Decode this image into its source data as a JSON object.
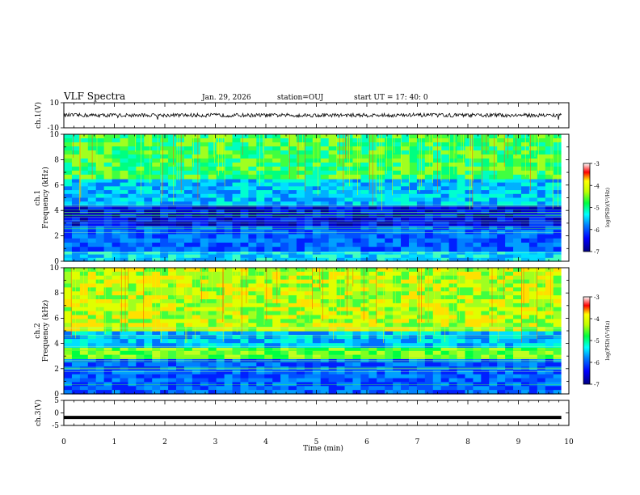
{
  "header": {
    "title": "VLF Spectra",
    "date": "Jan. 29, 2026",
    "station": "station=OUJ",
    "start": "start  UT =   17: 40: 0"
  },
  "chart_data": [
    {
      "type": "line",
      "panel": "ch1-waveform",
      "ylabel": "ch.1(V)",
      "ylim": [
        -10,
        10
      ],
      "yticks": [
        "10",
        "-10"
      ],
      "xlim": [
        0,
        10
      ],
      "level": 0
    },
    {
      "type": "heatmap",
      "panel": "ch1-spectrogram",
      "ylabel": [
        "ch.1",
        "Frequency  (kHz)"
      ],
      "ylim": [
        0,
        10
      ],
      "yticks": [
        "10",
        "8",
        "6",
        "4",
        "2",
        "0"
      ],
      "xlim": [
        0,
        10
      ],
      "data_end_min": 9.85,
      "colorbar": {
        "label": "log(PSD)(V²/Hz)",
        "range": [
          -7,
          -3
        ],
        "ticks": [
          "-3",
          "-4",
          "-5",
          "-6",
          "-7"
        ]
      },
      "bands": [
        {
          "from": 0.0,
          "to": 0.8,
          "level": "light-blue"
        },
        {
          "from": 0.8,
          "to": 2.8,
          "level": "blue"
        },
        {
          "from": 2.8,
          "to": 4.4,
          "level": "dark-blue"
        },
        {
          "from": 4.4,
          "to": 6.5,
          "level": "cyan-blue"
        },
        {
          "from": 6.5,
          "to": 10.0,
          "level": "cyan-green"
        }
      ]
    },
    {
      "type": "heatmap",
      "panel": "ch2-spectrogram",
      "ylabel": [
        "ch.2",
        "Frequency  (kHz)"
      ],
      "ylim": [
        0,
        10
      ],
      "yticks": [
        "10",
        "8",
        "6",
        "4",
        "2",
        "0"
      ],
      "xlim": [
        0,
        10
      ],
      "data_end_min": 9.85,
      "colorbar": {
        "label": "log(PSD)(V²/Hz)",
        "range": [
          -7,
          -3
        ],
        "ticks": [
          "-3",
          "-4",
          "-5",
          "-6",
          "-7"
        ]
      },
      "bands": [
        {
          "from": 0.0,
          "to": 2.8,
          "level": "blue"
        },
        {
          "from": 2.8,
          "to": 3.7,
          "level": "green"
        },
        {
          "from": 3.7,
          "to": 5.0,
          "level": "cyan-blue"
        },
        {
          "from": 5.0,
          "to": 10.0,
          "level": "green-yellow"
        }
      ]
    },
    {
      "type": "line",
      "panel": "ch3-waveform",
      "ylabel": "ch.3(V)",
      "ylim": [
        -5,
        5
      ],
      "yticks": [
        "5",
        "0",
        "-5"
      ],
      "xlim": [
        0,
        10
      ],
      "level": -1.8
    }
  ],
  "xaxis": {
    "label": "Time  (min)",
    "ticks": [
      "0",
      "1",
      "2",
      "3",
      "4",
      "5",
      "6",
      "7",
      "8",
      "9",
      "10"
    ]
  }
}
